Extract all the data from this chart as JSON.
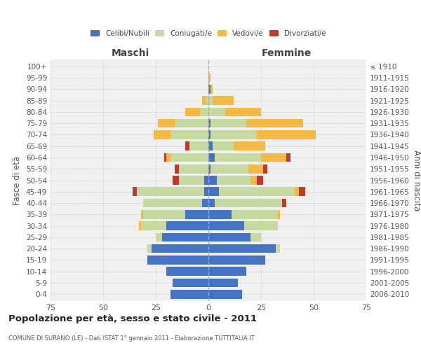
{
  "age_groups": [
    "0-4",
    "5-9",
    "10-14",
    "15-19",
    "20-24",
    "25-29",
    "30-34",
    "35-39",
    "40-44",
    "45-49",
    "50-54",
    "55-59",
    "60-64",
    "65-69",
    "70-74",
    "75-79",
    "80-84",
    "85-89",
    "90-94",
    "95-99",
    "100+"
  ],
  "birth_years": [
    "2006-2010",
    "2001-2005",
    "1996-2000",
    "1991-1995",
    "1986-1990",
    "1981-1985",
    "1976-1980",
    "1971-1975",
    "1966-1970",
    "1961-1965",
    "1956-1960",
    "1951-1955",
    "1946-1950",
    "1941-1945",
    "1936-1940",
    "1931-1935",
    "1926-1930",
    "1921-1925",
    "1916-1920",
    "1911-1915",
    "≤ 1910"
  ],
  "male": {
    "celibi": [
      18,
      17,
      20,
      29,
      27,
      22,
      20,
      11,
      3,
      2,
      2,
      0,
      0,
      0,
      0,
      0,
      0,
      0,
      0,
      0,
      0
    ],
    "coniugati": [
      0,
      0,
      0,
      0,
      2,
      3,
      12,
      20,
      28,
      32,
      12,
      14,
      18,
      9,
      18,
      16,
      4,
      1,
      0,
      0,
      0
    ],
    "vedovi": [
      0,
      0,
      0,
      0,
      0,
      0,
      1,
      1,
      0,
      0,
      0,
      0,
      2,
      0,
      8,
      8,
      7,
      2,
      0,
      0,
      0
    ],
    "divorziati": [
      0,
      0,
      0,
      0,
      0,
      0,
      0,
      0,
      0,
      2,
      3,
      2,
      1,
      2,
      0,
      0,
      0,
      0,
      0,
      0,
      0
    ]
  },
  "female": {
    "nubili": [
      16,
      14,
      18,
      27,
      32,
      20,
      17,
      11,
      3,
      5,
      4,
      1,
      3,
      2,
      1,
      1,
      0,
      0,
      1,
      0,
      0
    ],
    "coniugate": [
      0,
      0,
      0,
      0,
      2,
      5,
      16,
      22,
      32,
      36,
      16,
      18,
      22,
      10,
      22,
      17,
      8,
      2,
      0,
      0,
      0
    ],
    "vedove": [
      0,
      0,
      0,
      0,
      0,
      0,
      0,
      1,
      0,
      2,
      3,
      7,
      12,
      15,
      28,
      27,
      17,
      10,
      1,
      1,
      0
    ],
    "divorziate": [
      0,
      0,
      0,
      0,
      0,
      0,
      0,
      0,
      2,
      3,
      3,
      2,
      2,
      0,
      0,
      0,
      0,
      0,
      0,
      0,
      0
    ]
  },
  "colors": {
    "celibi": "#4472c4",
    "coniugati": "#c5d9a0",
    "vedovi": "#f4b942",
    "divorziati": "#c0392b"
  },
  "xlim": 75,
  "title": "Popolazione per età, sesso e stato civile - 2011",
  "subtitle": "COMUNE DI SURANO (LE) - Dati ISTAT 1° gennaio 2011 - Elaborazione TUTTITALIA.IT",
  "ylabel_left": "Fasce di età",
  "ylabel_right": "Anni di nascita",
  "xlabel_left": "Maschi",
  "xlabel_right": "Femmine",
  "legend_labels": [
    "Celibi/Nubili",
    "Coniugati/e",
    "Vedovi/e",
    "Divorziati/e"
  ],
  "bg_color": "#f0f0f0",
  "grid_color": "#cccccc"
}
